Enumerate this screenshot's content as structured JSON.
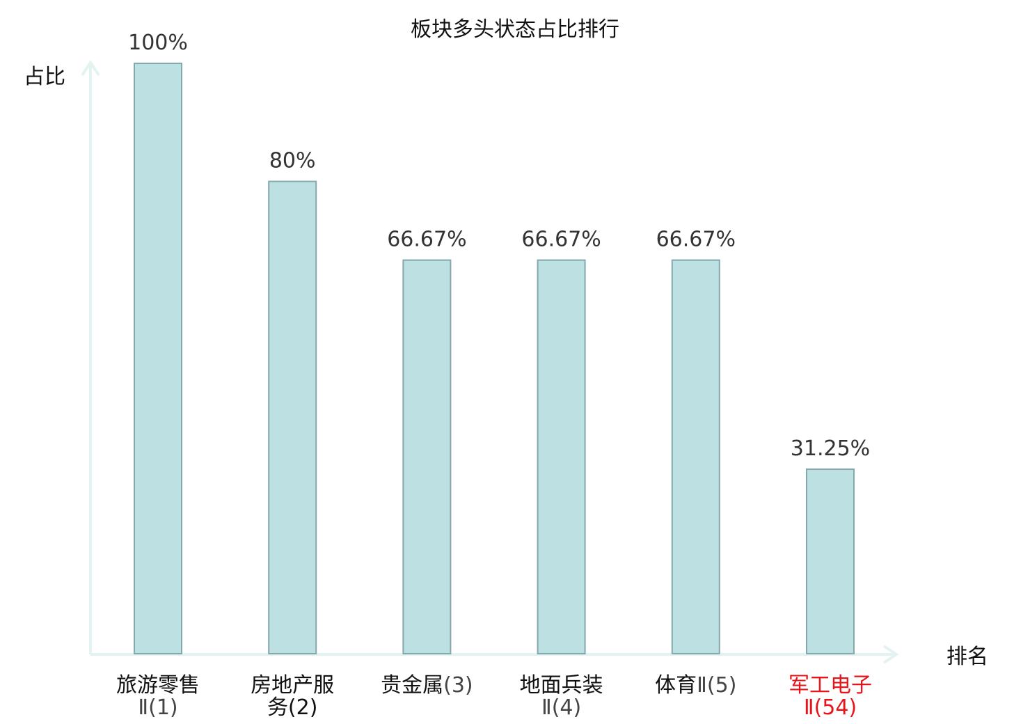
{
  "chart_data": {
    "type": "bar",
    "title": "板块多头状态占比排行",
    "ylabel": "占比",
    "xlabel": "排名",
    "ylim": [
      0,
      100
    ],
    "grid": false,
    "categories": [
      {
        "name": "旅游零售",
        "sub": "Ⅱ(1)",
        "highlight": false
      },
      {
        "name": "房地产服",
        "sub": "务(2)",
        "highlight": false
      },
      {
        "name": "贵金属",
        "sub_inline": "(3)",
        "highlight": false
      },
      {
        "name": "地面兵装",
        "sub": "Ⅱ(4)",
        "highlight": false
      },
      {
        "name": "体育",
        "sub_inline": "Ⅱ(5)",
        "highlight": false
      },
      {
        "name": "军工电子",
        "sub": "Ⅱ(54)",
        "highlight": true
      }
    ],
    "values": [
      100,
      80,
      66.67,
      66.67,
      66.67,
      31.25
    ],
    "value_labels": [
      "100%",
      "80%",
      "66.67%",
      "66.67%",
      "66.67%",
      "31.25%"
    ]
  },
  "colors": {
    "bar_fill": "#bde0e3",
    "bar_stroke": "#85a8ad",
    "axis": "#e2f3f1",
    "text": "#111111",
    "subtext": "#444444",
    "highlight": "#e8141a"
  }
}
